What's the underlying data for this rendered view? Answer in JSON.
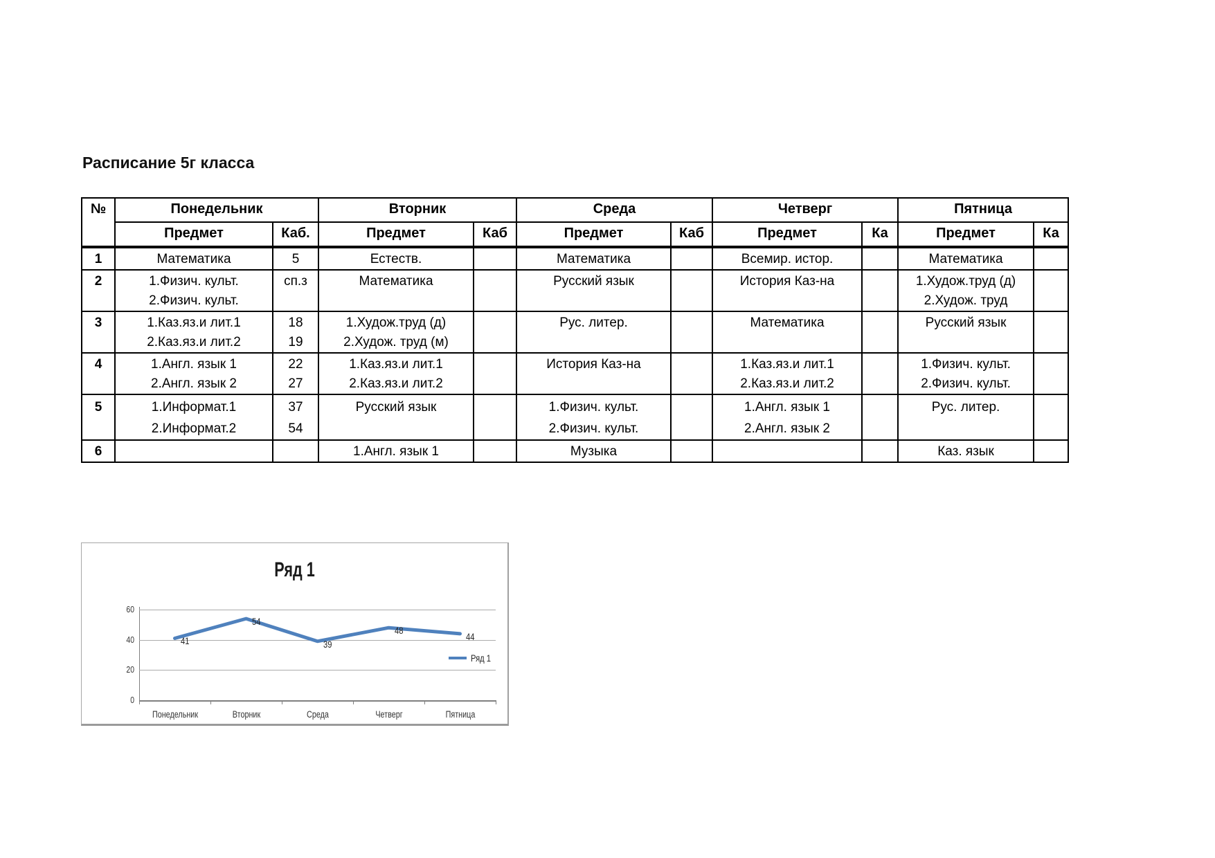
{
  "page": {
    "title": "Расписание 5г класса"
  },
  "schedule": {
    "days": [
      "Понедельник",
      "Вторник",
      "Среда",
      "Четверг",
      "Пятница"
    ],
    "columns": {
      "num": "№",
      "subject": "Предмет",
      "cab_labels": [
        "Каб.",
        "Каб",
        "Каб",
        "Ка",
        "Ка"
      ]
    },
    "rows": [
      {
        "num": "1",
        "cells": [
          {
            "subject": "Математика",
            "cab": "5"
          },
          {
            "subject": "Естеств.",
            "cab": ""
          },
          {
            "subject": "Математика",
            "cab": ""
          },
          {
            "subject": "Всемир. истор.",
            "cab": ""
          },
          {
            "subject": "Математика",
            "cab": ""
          }
        ]
      },
      {
        "num": "2",
        "cells": [
          {
            "subject": "1.Физич. культ.\n2.Физич. культ.",
            "cab": "сп.з"
          },
          {
            "subject": "Математика",
            "cab": ""
          },
          {
            "subject": "Русский язык",
            "cab": ""
          },
          {
            "subject": "История Каз-на",
            "cab": ""
          },
          {
            "subject": "1.Худож.труд (д)\n2.Худож. труд",
            "cab": ""
          }
        ]
      },
      {
        "num": "3",
        "cells": [
          {
            "subject": "1.Каз.яз.и лит.1\n2.Каз.яз.и лит.2",
            "cab": "18\n19"
          },
          {
            "subject": "1.Худож.труд (д)\n2.Худож. труд (м)",
            "cab": ""
          },
          {
            "subject": "Рус. литер.",
            "cab": ""
          },
          {
            "subject": "Математика",
            "cab": ""
          },
          {
            "subject": "Русский язык",
            "cab": ""
          }
        ]
      },
      {
        "num": "4",
        "cells": [
          {
            "subject": "1.Англ. язык 1\n2.Англ. язык 2",
            "cab": "22\n27"
          },
          {
            "subject": "1.Каз.яз.и лит.1\n2.Каз.яз.и лит.2",
            "cab": ""
          },
          {
            "subject": "История Каз-на",
            "cab": ""
          },
          {
            "subject": "1.Каз.яз.и лит.1\n2.Каз.яз.и лит.2",
            "cab": ""
          },
          {
            "subject": "1.Физич. культ.\n2.Физич. культ.",
            "cab": ""
          }
        ]
      },
      {
        "num": "5",
        "cells": [
          {
            "subject": "1.Информат.1\n2.Информат.2",
            "cab": "37\n54"
          },
          {
            "subject": "Русский язык",
            "cab": ""
          },
          {
            "subject": "1.Физич. культ.\n2.Физич. культ.",
            "cab": ""
          },
          {
            "subject": "1.Англ. язык 1\n2.Англ. язык 2",
            "cab": ""
          },
          {
            "subject": "Рус. литер.",
            "cab": ""
          }
        ]
      },
      {
        "num": "6",
        "cells": [
          {
            "subject": "",
            "cab": ""
          },
          {
            "subject": "1.Англ. язык 1",
            "cab": ""
          },
          {
            "subject": "Музыка",
            "cab": ""
          },
          {
            "subject": "",
            "cab": ""
          },
          {
            "subject": "Каз. язык",
            "cab": ""
          }
        ]
      }
    ]
  },
  "chart_data": {
    "type": "line",
    "title": "Ряд 1",
    "categories": [
      "Понедельник",
      "Вторник",
      "Среда",
      "Четверг",
      "Пятница"
    ],
    "series": [
      {
        "name": "Ряд 1",
        "values": [
          41,
          54,
          39,
          48,
          44
        ],
        "color": "#4f81bd"
      }
    ],
    "ylim": [
      0,
      60
    ],
    "yticks": [
      0,
      20,
      40,
      60
    ],
    "grid": true,
    "data_labels": true,
    "legend_position": "right"
  }
}
